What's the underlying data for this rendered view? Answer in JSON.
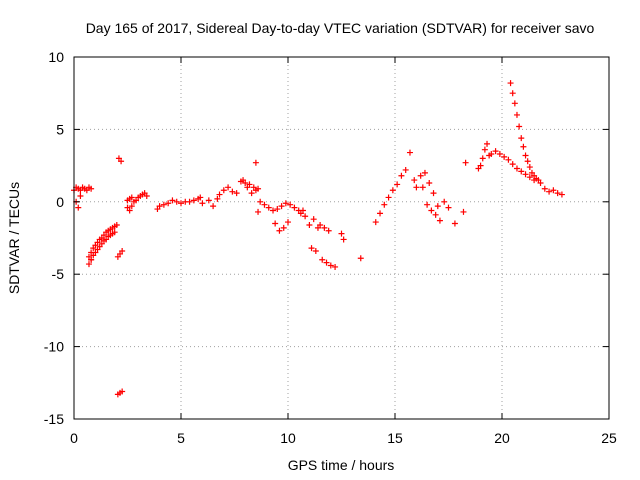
{
  "chart_data": {
    "type": "scatter",
    "title": "Day 165 of 2017, Sidereal Day-to-day VTEC variation (SDTVAR) for receiver savo",
    "xlabel": "GPS time / hours",
    "ylabel": "SDTVAR / TECUs",
    "xlim": [
      0,
      25
    ],
    "ylim": [
      -15,
      10
    ],
    "xticks": [
      "0",
      "5",
      "10",
      "15",
      "20",
      "25"
    ],
    "yticks": [
      "-15",
      "-10",
      "-5",
      "0",
      "5",
      "10"
    ],
    "grid": true,
    "marker": "+",
    "color": "#ff0000",
    "x": [
      0.0,
      0.1,
      0.2,
      0.3,
      0.4,
      0.5,
      0.6,
      0.7,
      0.8,
      0.1,
      0.2,
      0.3,
      0.7,
      0.8,
      0.7,
      0.8,
      0.9,
      1.0,
      1.1,
      1.2,
      1.3,
      1.4,
      1.5,
      1.6,
      1.7,
      1.8,
      1.9,
      2.0,
      0.8,
      0.9,
      1.0,
      1.1,
      1.2,
      1.3,
      1.4,
      1.5,
      1.6,
      1.7,
      1.8,
      1.9,
      2.1,
      2.2,
      2.05,
      2.15,
      2.25,
      2.05,
      2.15,
      2.25,
      2.5,
      2.6,
      2.7,
      2.8,
      2.9,
      3.0,
      3.1,
      3.2,
      3.3,
      3.4,
      2.5,
      2.6,
      2.7,
      3.9,
      4.0,
      4.2,
      4.4,
      4.6,
      4.8,
      5.0,
      5.2,
      5.4,
      5.6,
      5.8,
      5.9,
      6.0,
      6.3,
      6.5,
      6.7,
      6.8,
      7.0,
      7.2,
      7.4,
      7.6,
      7.8,
      8.0,
      8.2,
      8.4,
      8.5,
      8.6,
      7.9,
      8.1,
      8.3,
      8.5,
      8.6,
      8.7,
      8.9,
      9.1,
      9.3,
      9.5,
      9.7,
      9.9,
      10.1,
      10.3,
      10.5,
      10.6,
      10.7,
      9.4,
      9.6,
      9.8,
      10.0,
      10.8,
      11.0,
      11.2,
      11.4,
      11.1,
      11.3,
      11.5,
      11.7,
      11.9,
      11.6,
      11.8,
      12.0,
      12.2,
      12.5,
      12.6,
      13.4,
      14.1,
      14.3,
      14.5,
      14.7,
      14.9,
      15.1,
      15.3,
      15.5,
      15.7,
      15.9,
      16.0,
      16.2,
      16.4,
      16.6,
      16.8,
      17.0,
      16.3,
      16.5,
      16.7,
      16.9,
      17.1,
      17.3,
      17.5,
      17.8,
      18.2,
      18.3,
      18.9,
      19.0,
      19.1,
      19.2,
      19.3,
      19.4,
      19.5,
      19.7,
      19.9,
      20.1,
      20.3,
      20.5,
      20.7,
      20.9,
      21.1,
      21.3,
      21.5,
      20.4,
      20.5,
      20.6,
      20.7,
      20.8,
      20.9,
      21.0,
      21.1,
      21.2,
      21.3,
      21.4,
      21.5,
      21.6,
      21.7,
      21.8,
      22.0,
      22.2,
      22.4,
      22.6,
      22.8
    ],
    "y": [
      0.8,
      1.0,
      0.9,
      0.8,
      1.0,
      0.9,
      0.8,
      1.0,
      0.9,
      0.0,
      -0.4,
      0.4,
      -4.3,
      -4.0,
      -3.8,
      -3.5,
      -3.2,
      -3.0,
      -2.8,
      -2.6,
      -2.5,
      -2.3,
      -2.1,
      -2.0,
      -1.9,
      -1.8,
      -1.7,
      -1.6,
      -4.0,
      -3.7,
      -3.5,
      -3.3,
      -3.1,
      -2.9,
      -2.7,
      -2.6,
      -2.4,
      -2.3,
      -2.2,
      -2.1,
      3.0,
      2.8,
      -3.8,
      -3.6,
      -3.4,
      -13.3,
      -13.2,
      -13.1,
      0.1,
      0.2,
      0.3,
      0.0,
      0.1,
      0.3,
      0.4,
      0.5,
      0.6,
      0.4,
      -0.4,
      -0.6,
      -0.3,
      -0.5,
      -0.3,
      -0.2,
      -0.1,
      0.1,
      0.0,
      -0.1,
      0.0,
      0.0,
      0.1,
      0.2,
      0.3,
      -0.1,
      0.1,
      -0.3,
      0.2,
      0.5,
      0.8,
      1.0,
      0.7,
      0.6,
      1.4,
      1.3,
      1.2,
      1.0,
      0.8,
      0.9,
      1.5,
      1.0,
      0.6,
      2.7,
      -0.7,
      0.0,
      -0.2,
      -0.4,
      -0.6,
      -0.5,
      -0.3,
      -0.1,
      -0.2,
      -0.4,
      -0.6,
      -0.8,
      -0.6,
      -1.5,
      -2.0,
      -1.8,
      -1.4,
      -1.0,
      -1.6,
      -1.2,
      -1.8,
      -3.2,
      -3.4,
      -1.6,
      -1.8,
      -2.0,
      -4.0,
      -4.2,
      -4.4,
      -4.5,
      -2.2,
      -2.6,
      -3.9,
      -1.4,
      -0.8,
      -0.2,
      0.3,
      0.8,
      1.2,
      1.8,
      2.2,
      3.4,
      1.5,
      1.0,
      1.8,
      2.0,
      1.3,
      0.6,
      -0.3,
      1.0,
      -0.2,
      -0.6,
      -0.9,
      -1.3,
      0.0,
      -0.4,
      -1.5,
      -0.7,
      2.7,
      2.3,
      2.5,
      3.0,
      3.6,
      4.0,
      3.2,
      3.3,
      3.5,
      3.3,
      3.1,
      2.9,
      2.6,
      2.3,
      2.1,
      1.9,
      1.7,
      1.5,
      8.2,
      7.5,
      6.8,
      6.0,
      5.2,
      4.4,
      3.8,
      3.2,
      2.8,
      2.4,
      2.0,
      1.8,
      1.6,
      1.5,
      1.3,
      0.9,
      0.7,
      0.8,
      0.6,
      0.5
    ]
  }
}
